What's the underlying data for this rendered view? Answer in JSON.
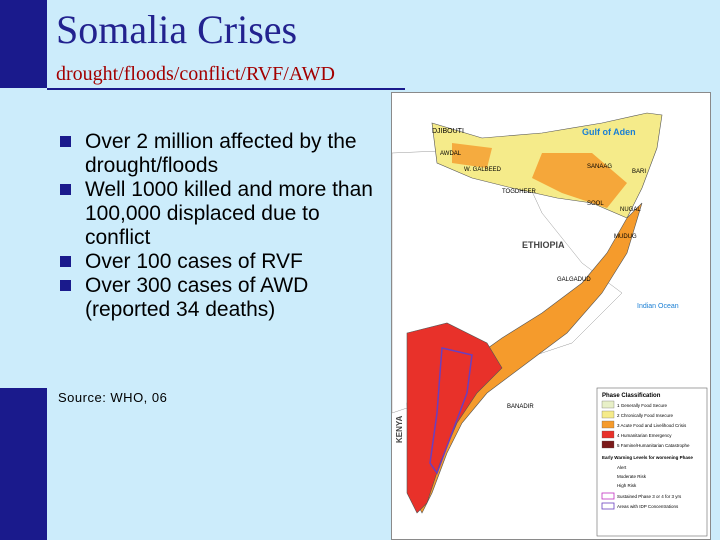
{
  "slide": {
    "title": "Somalia Crises",
    "subtitle": "drought/floods/conflict/RVF/AWD",
    "bullets": [
      "Over 2 million affected by the drought/floods",
      "Well 1000 killed and more than 100,000 displaced due to conflict",
      "Over 100 cases of RVF",
      "Over 300 cases of AWD (reported 34 deaths)"
    ],
    "source": "Source:  WHO, 06"
  },
  "map": {
    "labels": {
      "djibouti": "DJIBOUTI",
      "gulf": "Gulf of Aden",
      "ethiopia": "ETHIOPIA",
      "indian_ocean": "Indian Ocean",
      "kenya": "KENYA",
      "sanaag": "SANAAG",
      "bari": "BARI",
      "sool": "SOOL",
      "nugal": "NUGAL",
      "mudug": "MUDUG",
      "awdal": "AWDAL",
      "w_galbeed": "W. GALBEED",
      "togdheer": "TOGDHEER",
      "galgadud": "GALGADUD",
      "banadir": "BANADIR"
    },
    "legend": {
      "title": "Phase Classification",
      "items": [
        {
          "label": "1 Generally Food Secure",
          "color": "#e8f0c8"
        },
        {
          "label": "2 Chronically Food Insecure",
          "color": "#f5eb8a"
        },
        {
          "label": "3 Acute Food and Livelihood Crisis",
          "color": "#f59b2c"
        },
        {
          "label": "4 Humanitarian Emergency",
          "color": "#e8312a"
        },
        {
          "label": "5 Famine/Humanitarian Catastrophe",
          "color": "#7a1a1a"
        }
      ],
      "warning_title": "Early Warning Levels for worsening Phase",
      "warnings": [
        "Alert",
        "Moderate Risk",
        "High Risk"
      ],
      "extra": [
        "Sustained Phase 3 or 4 for 3 yrs",
        "Areas with IDP Concentrations"
      ]
    }
  }
}
